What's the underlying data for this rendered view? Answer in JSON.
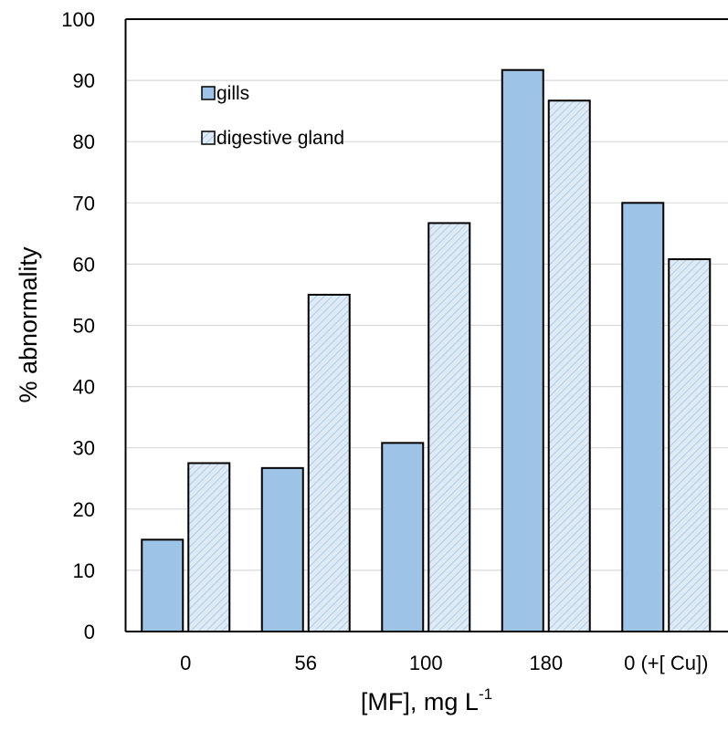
{
  "chart_data": {
    "type": "bar",
    "categories": [
      "0",
      "56",
      "100",
      "180",
      "0 (+[ Cu])"
    ],
    "series": [
      {
        "name": "gills",
        "values": [
          15,
          26.7,
          30.8,
          91.7,
          70
        ]
      },
      {
        "name": "digestive gland",
        "values": [
          27.5,
          55,
          66.7,
          86.7,
          60.8
        ]
      }
    ],
    "xlabel": {
      "main": "[MF], mg L",
      "superscript": "-1"
    },
    "ylabel": "% abnormality",
    "ylim": [
      0,
      100
    ],
    "yticks": [
      "0",
      "10",
      "20",
      "30",
      "40",
      "50",
      "60",
      "70",
      "80",
      "90",
      "100"
    ],
    "grid": true,
    "legend_position": "top-left",
    "colors": {
      "gills_fill": "#9dc3e6",
      "digestive_fill": "#deebf7",
      "digestive_hatch": "#b4cde4",
      "bar_outline": "#000000",
      "grid": "#d9d9d9"
    }
  }
}
